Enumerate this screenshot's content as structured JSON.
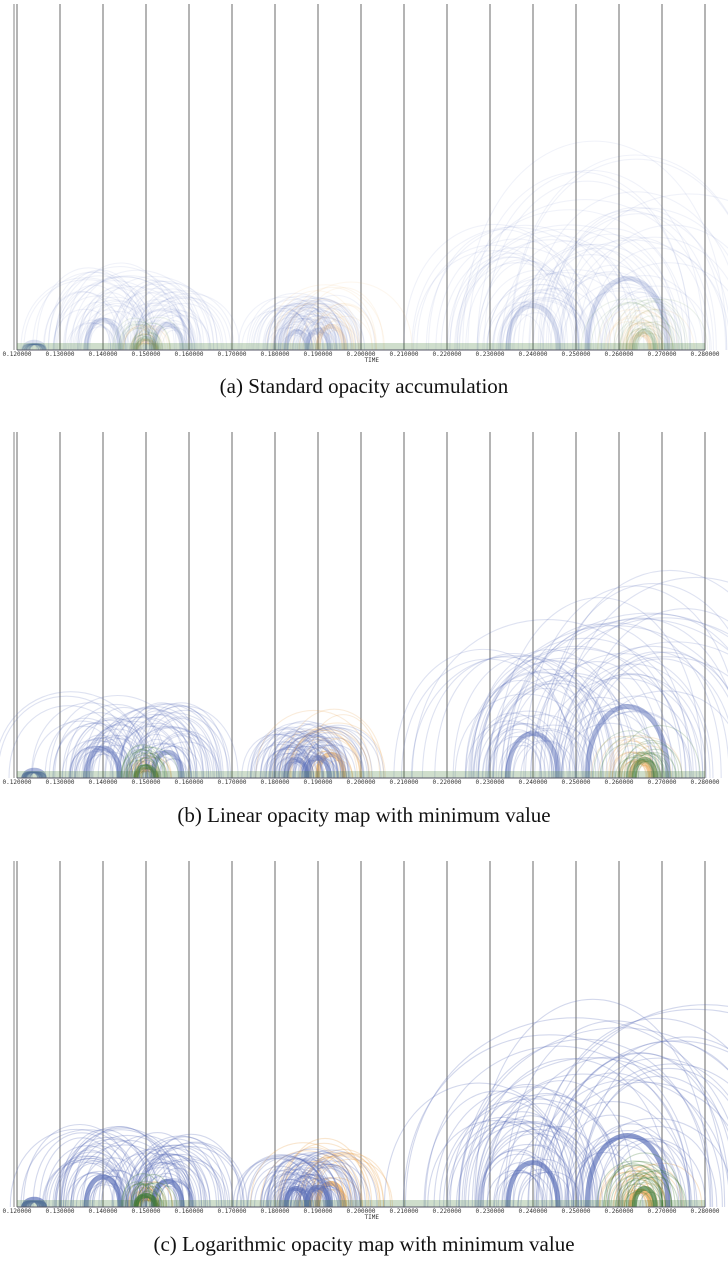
{
  "figure": {
    "captions": [
      "(a)  Standard opacity accumulation",
      "(b)  Linear opacity map with minimum value",
      "(c)  Logarithmic opacity map with minimum value"
    ]
  },
  "colors": {
    "blue": "#5b6fb8",
    "orange": "#e8a24c",
    "green": "#3e7a35",
    "grid": "#444444"
  },
  "chart_data": [
    {
      "type": "arc",
      "caption": "(a)  Standard opacity accumulation",
      "xlabel": "TIME",
      "ticks": [
        "0.120000",
        "0.130000",
        "0.140000",
        "0.150000",
        "0.160000",
        "0.170000",
        "0.180000",
        "0.190000",
        "0.200000",
        "0.210000",
        "0.220000",
        "0.230000",
        "0.240000",
        "0.250000",
        "0.260000",
        "0.270000",
        "0.280000"
      ],
      "xlim": [
        0.12,
        0.28
      ],
      "opacity_map": "standard",
      "arc_opacity": 0.09,
      "series": [
        {
          "color": "blue",
          "peaks": [
            [
              0.124,
              0.03
            ],
            [
              0.14,
              0.42
            ],
            [
              0.155,
              0.36
            ],
            [
              0.185,
              0.26
            ],
            [
              0.19,
              0.28
            ],
            [
              0.24,
              0.62
            ],
            [
              0.262,
              1.0
            ]
          ]
        },
        {
          "color": "orange",
          "peaks": [
            [
              0.15,
              0.12
            ],
            [
              0.193,
              0.33
            ],
            [
              0.265,
              0.22
            ]
          ]
        },
        {
          "color": "green",
          "peaks": [
            [
              0.15,
              0.16
            ],
            [
              0.266,
              0.26
            ]
          ]
        }
      ]
    },
    {
      "type": "arc",
      "caption": "(b)  Linear opacity map with minimum value",
      "xlabel": "",
      "ticks": [
        "0.120000",
        "0.130000",
        "0.140000",
        "0.150000",
        "0.160000",
        "0.170000",
        "0.180000",
        "0.190000",
        "0.200000",
        "0.210000",
        "0.220000",
        "0.230000",
        "0.240000",
        "0.250000",
        "0.260000",
        "0.270000",
        "0.280000"
      ],
      "xlim": [
        0.12,
        0.28
      ],
      "opacity_map": "linear-min",
      "arc_opacity": 0.2,
      "series": [
        {
          "color": "blue",
          "peaks": [
            [
              0.124,
              0.03
            ],
            [
              0.14,
              0.42
            ],
            [
              0.155,
              0.36
            ],
            [
              0.185,
              0.26
            ],
            [
              0.19,
              0.28
            ],
            [
              0.24,
              0.62
            ],
            [
              0.262,
              1.0
            ]
          ]
        },
        {
          "color": "orange",
          "peaks": [
            [
              0.15,
              0.12
            ],
            [
              0.193,
              0.33
            ],
            [
              0.265,
              0.22
            ]
          ]
        },
        {
          "color": "green",
          "peaks": [
            [
              0.15,
              0.16
            ],
            [
              0.266,
              0.26
            ]
          ]
        }
      ]
    },
    {
      "type": "arc",
      "caption": "(c)  Logarithmic opacity map with minimum value",
      "xlabel": "TIME",
      "ticks": [
        "0.120000",
        "0.130000",
        "0.140000",
        "0.150000",
        "0.160000",
        "0.170000",
        "0.180000",
        "0.190000",
        "0.200000",
        "0.210000",
        "0.220000",
        "0.230000",
        "0.240000",
        "0.250000",
        "0.260000",
        "0.270000",
        "0.280000"
      ],
      "xlim": [
        0.12,
        0.28
      ],
      "opacity_map": "log-min",
      "arc_opacity": 0.27,
      "series": [
        {
          "color": "blue",
          "peaks": [
            [
              0.124,
              0.03
            ],
            [
              0.14,
              0.42
            ],
            [
              0.155,
              0.36
            ],
            [
              0.185,
              0.26
            ],
            [
              0.19,
              0.28
            ],
            [
              0.24,
              0.62
            ],
            [
              0.262,
              1.0
            ]
          ]
        },
        {
          "color": "orange",
          "peaks": [
            [
              0.15,
              0.12
            ],
            [
              0.193,
              0.33
            ],
            [
              0.265,
              0.22
            ]
          ]
        },
        {
          "color": "green",
          "peaks": [
            [
              0.15,
              0.16
            ],
            [
              0.266,
              0.26
            ]
          ]
        }
      ]
    }
  ]
}
